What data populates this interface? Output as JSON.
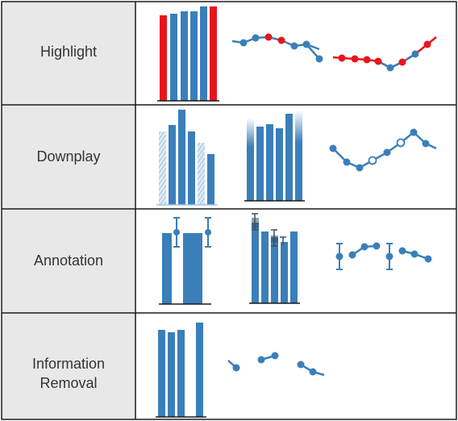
{
  "rows": [
    {
      "label_lines": [
        "Highlight"
      ]
    },
    {
      "label_lines": [
        "Downplay"
      ]
    },
    {
      "label_lines": [
        "Annotation"
      ]
    },
    {
      "label_lines": [
        "Information",
        "Removal"
      ]
    }
  ],
  "colors": {
    "blue": "#3a7fb9",
    "red": "#e8151a",
    "label_bg": "#e8e8e8",
    "border": "#1a1a1a",
    "axis": "#1a1a1a",
    "annotation_dark": "#3c4e62",
    "light_blue": "#b9d4ea"
  },
  "chart_data": [
    {
      "type": "bar",
      "technique": "Highlight",
      "values": [
        104,
        106,
        109,
        109,
        113,
        112
      ],
      "highlighted_index": [
        0,
        5
      ]
    },
    {
      "type": "line",
      "technique": "Highlight",
      "values": [
        77,
        82,
        81,
        78,
        71,
        67,
        73,
        71,
        69,
        64
      ],
      "highlighted_index": [
        3,
        4
      ]
    },
    {
      "type": "line",
      "technique": "Highlight",
      "values": [
        53,
        53,
        52,
        52,
        50,
        46,
        43,
        47,
        52,
        60,
        70
      ],
      "highlighted_index": [
        0,
        1,
        2,
        3,
        4,
        7,
        9
      ]
    },
    {
      "type": "bar",
      "technique": "Downplay",
      "values": [
        91,
        99,
        118,
        104,
        92,
        78,
        64
      ],
      "downplayed_index": [
        0,
        5
      ]
    },
    {
      "type": "bar",
      "technique": "Downplay",
      "values": [
        94,
        96,
        98,
        95,
        110,
        114
      ],
      "downplayed_range": "top fade"
    },
    {
      "type": "line",
      "technique": "Downplay",
      "values": [
        61,
        52,
        44,
        50,
        55,
        63,
        73,
        83,
        73
      ],
      "downplayed_index": [
        4,
        6
      ]
    },
    {
      "type": "bar",
      "technique": "Annotation",
      "values": [
        88,
        88,
        88
      ],
      "annotated_values": [
        88,
        88
      ],
      "annotation": "error bars"
    },
    {
      "type": "bar",
      "technique": "Annotation",
      "values": [
        100,
        88,
        80,
        88,
        88
      ],
      "annotation": "error bars"
    },
    {
      "type": "line",
      "technique": "Annotation",
      "values": [
        56,
        62,
        71,
        71,
        56,
        63,
        60,
        53
      ],
      "annotation": "error bars"
    },
    {
      "type": "bar",
      "technique": "Information Removal",
      "values": [
        108,
        104,
        107,
        115
      ],
      "removed_index": [
        3
      ]
    },
    {
      "type": "line",
      "technique": "Information Removal",
      "values": [
        62,
        52,
        80,
        82,
        69,
        58
      ],
      "removed_segments": true
    }
  ]
}
